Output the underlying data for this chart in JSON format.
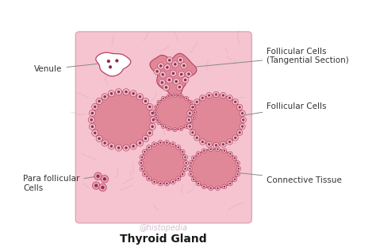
{
  "title": "Thyroid Gland",
  "watermark": "@histopedia",
  "bg_color": "#ffffff",
  "tissue_bg": "#f5c4d0",
  "tissue_border": "#d4a0b0",
  "follicle_fill": "#e08898",
  "follicle_border": "#b84060",
  "cell_fill": "#f0bcc8",
  "nucleus_fill": "#883050",
  "venule_fill": "#ffffff",
  "para_fill": "#e8a0b4",
  "conn_line_color": "#d4a0b8",
  "label_color": "#333333",
  "arrow_color": "#888888",
  "label_fontsize": 7.5,
  "title_fontsize": 10,
  "watermark_color": "#c8a8bc",
  "labels": {
    "venule": "Venule",
    "follicular_tangential": "Follicular Cells\n(Tangential Section)",
    "follicular": "Follicular Cells",
    "para_follicular": "Para follicular\nCells",
    "connective": "Connective Tissue"
  }
}
